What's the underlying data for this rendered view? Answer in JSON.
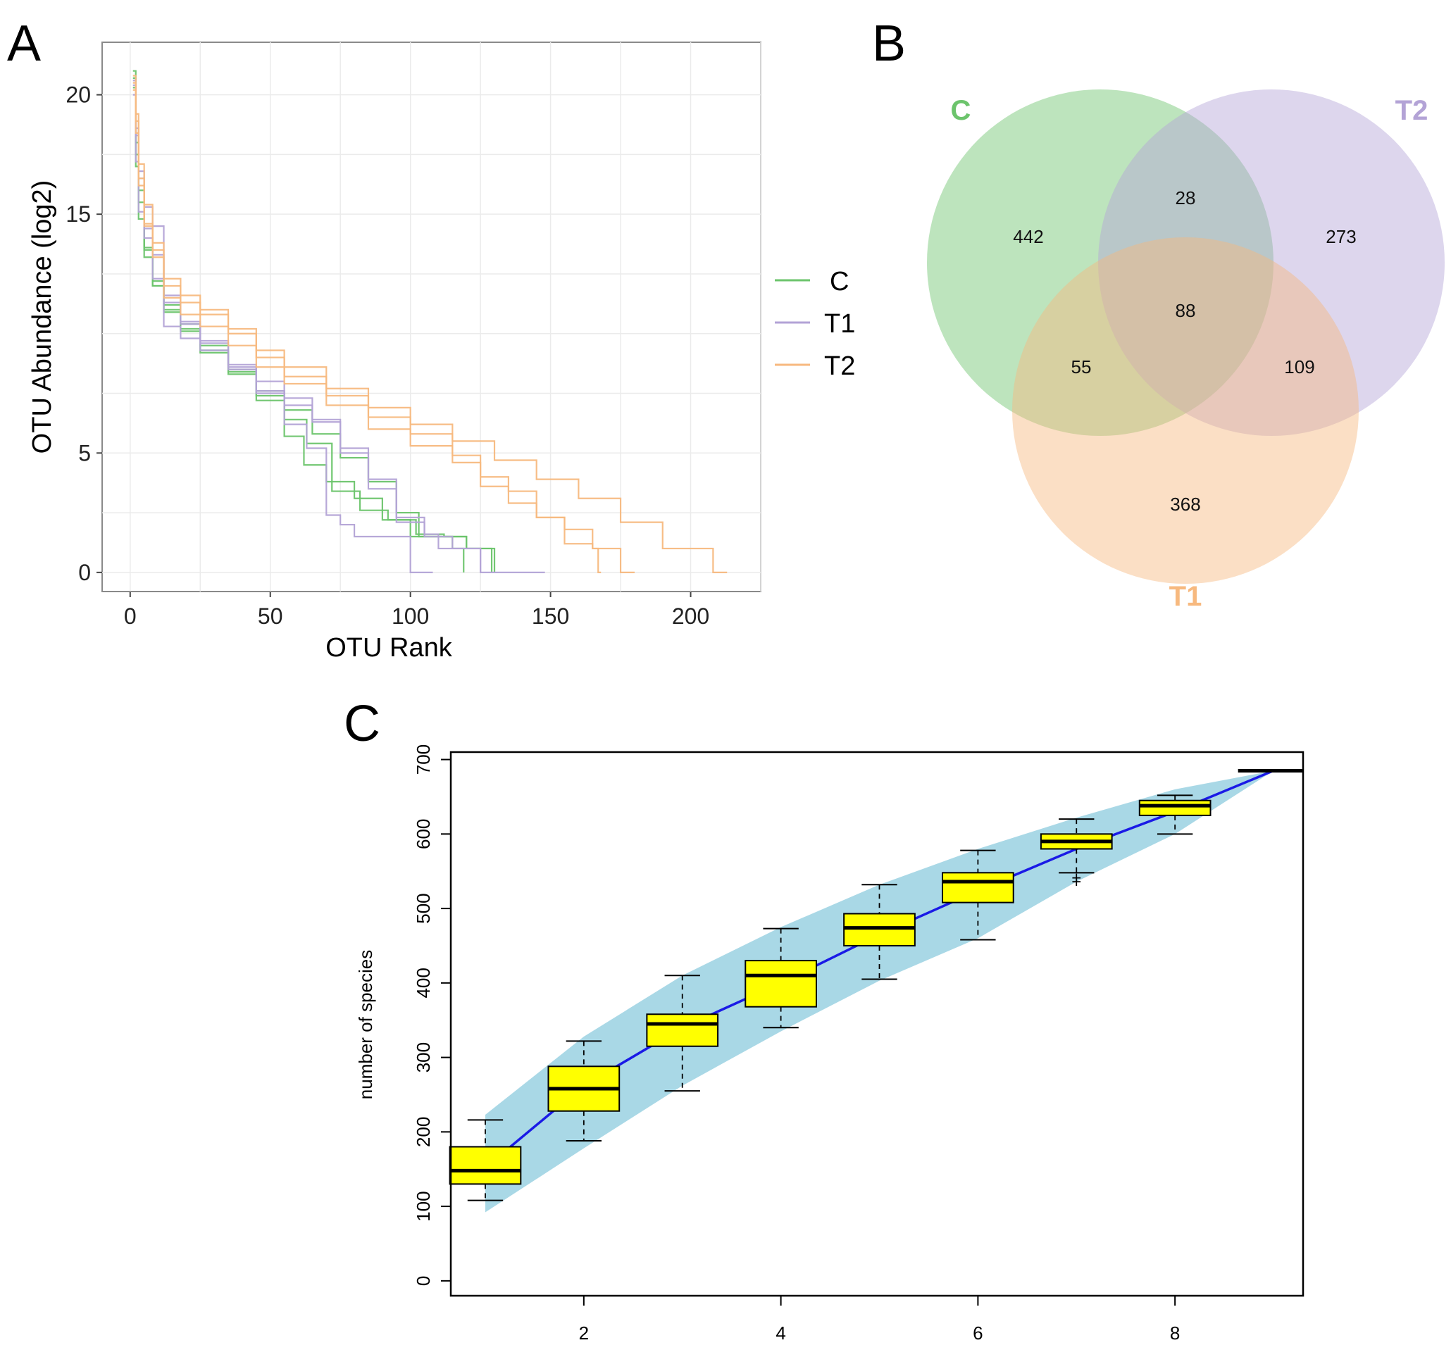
{
  "panels": {
    "a": "A",
    "b": "B",
    "c": "C"
  },
  "colors": {
    "C": "#6cc46c",
    "T1": "#b3a3d6",
    "T2": "#f7b97f",
    "box": "#ffff00",
    "band": "#a9d8e6",
    "mean_line": "#1a1ae6"
  },
  "chart_data": [
    {
      "type": "line",
      "panel": "A",
      "title": "",
      "xlabel": "OTU Rank",
      "ylabel": "OTU Abundance (log2)",
      "xlim": [
        -10,
        225
      ],
      "ylim": [
        -0.8,
        22.2
      ],
      "xticks": [
        0,
        50,
        100,
        150,
        200
      ],
      "yticks": [
        0,
        5,
        15,
        20
      ],
      "xtick_labels": [
        "0",
        "50",
        "100",
        "150",
        "200"
      ],
      "ytick_labels": [
        "0",
        "5",
        "15",
        "20"
      ],
      "grid": true,
      "legend": {
        "position": "right",
        "entries": [
          "C",
          "T1",
          "T2"
        ]
      },
      "series": [
        {
          "name": "C",
          "group": "C",
          "x": [
            1,
            2,
            3,
            5,
            8,
            12,
            18,
            25,
            35,
            45,
            55,
            62,
            70,
            80,
            90,
            100,
            110,
            115,
            118,
            119
          ],
          "y": [
            21,
            18,
            16,
            13.5,
            12.2,
            11.2,
            10.4,
            9.2,
            8.3,
            7.2,
            5.7,
            4.5,
            3.8,
            3.1,
            2.2,
            1.5,
            1.5,
            1,
            1,
            0
          ]
        },
        {
          "name": "C",
          "group": "C",
          "x": [
            1,
            2,
            3,
            5,
            8,
            12,
            18,
            25,
            35,
            45,
            55,
            63,
            72,
            82,
            92,
            102,
            112,
            120,
            126,
            128,
            129
          ],
          "y": [
            20.7,
            17.5,
            15.5,
            13.6,
            12,
            11,
            10.1,
            9.5,
            8.5,
            7.4,
            6.4,
            5.4,
            3.4,
            2.6,
            2.2,
            1.6,
            1.5,
            1,
            1,
            1,
            0
          ]
        },
        {
          "name": "C",
          "group": "C",
          "x": [
            1,
            2,
            3,
            5,
            8,
            12,
            18,
            25,
            35,
            45,
            55,
            65,
            75,
            85,
            95,
            103,
            110,
            120,
            128,
            130
          ],
          "y": [
            20.3,
            17,
            14.8,
            13.2,
            12,
            10.9,
            10.2,
            9.3,
            8.4,
            7.6,
            6.8,
            5.8,
            4.8,
            3.8,
            2.5,
            1.5,
            1.5,
            1,
            1,
            0
          ]
        },
        {
          "name": "T1",
          "group": "T1",
          "x": [
            1,
            2,
            3,
            5,
            8,
            12,
            18,
            25,
            35,
            45,
            55,
            63,
            70,
            75,
            80,
            90,
            100,
            108
          ],
          "y": [
            20.6,
            18.6,
            16.5,
            14,
            12.3,
            10.3,
            9.8,
            9.3,
            8.5,
            7.5,
            6.2,
            5.2,
            2.4,
            2,
            1.5,
            1.5,
            0,
            0
          ]
        },
        {
          "name": "T1",
          "group": "T1",
          "x": [
            1,
            2,
            3,
            5,
            8,
            12,
            18,
            25,
            35,
            45,
            55,
            65,
            75,
            85,
            95,
            105,
            110,
            120,
            123,
            125
          ],
          "y": [
            20,
            18.3,
            16.8,
            15.3,
            14.5,
            11.6,
            10.5,
            9.6,
            8.6,
            7.6,
            7,
            6.3,
            5,
            3.5,
            2.1,
            1.6,
            1,
            1,
            1,
            0
          ]
        },
        {
          "name": "T1",
          "group": "T1",
          "x": [
            1,
            2,
            3,
            5,
            8,
            12,
            18,
            25,
            35,
            45,
            55,
            65,
            75,
            85,
            95,
            105,
            115,
            125,
            135,
            145,
            148
          ],
          "y": [
            20.4,
            17.2,
            15.1,
            14.4,
            13.3,
            11.3,
            10.4,
            9.7,
            8.7,
            8,
            7.3,
            6.4,
            5.2,
            3.9,
            2.3,
            1.5,
            1,
            0,
            0,
            0,
            0
          ]
        },
        {
          "name": "T2",
          "group": "T2",
          "x": [
            1,
            2,
            3,
            5,
            8,
            12,
            18,
            25,
            35,
            45,
            55,
            70,
            85,
            100,
            115,
            125,
            135,
            145,
            155,
            165,
            170,
            175,
            180
          ],
          "y": [
            20.5,
            18.9,
            16.5,
            14.6,
            13.2,
            11.5,
            10.8,
            10.3,
            9.5,
            8.6,
            7.9,
            7,
            6,
            5.3,
            4.6,
            3.6,
            2.9,
            2.3,
            1.8,
            1,
            1,
            0,
            0
          ]
        },
        {
          "name": "T2",
          "group": "T2",
          "x": [
            1,
            2,
            3,
            5,
            8,
            12,
            18,
            25,
            35,
            45,
            55,
            70,
            85,
            100,
            115,
            125,
            135,
            145,
            155,
            165,
            167,
            168
          ],
          "y": [
            20.2,
            18.4,
            16.2,
            14.5,
            13.5,
            12,
            11.3,
            10.8,
            10,
            9,
            8.2,
            7.4,
            6.5,
            5.8,
            4.9,
            4,
            3.4,
            2.3,
            1.2,
            1,
            0,
            0
          ]
        },
        {
          "name": "T2",
          "group": "T2",
          "x": [
            1,
            2,
            3,
            5,
            8,
            12,
            18,
            25,
            35,
            45,
            55,
            70,
            85,
            100,
            115,
            130,
            145,
            160,
            175,
            190,
            205,
            208,
            210,
            213
          ],
          "y": [
            20.8,
            19.2,
            17.1,
            15.4,
            13.8,
            12.3,
            11.6,
            11,
            10.2,
            9.3,
            8.6,
            7.7,
            6.9,
            6.2,
            5.5,
            4.7,
            3.9,
            3.1,
            2.1,
            1,
            1,
            0,
            0,
            0
          ]
        }
      ]
    },
    {
      "type": "venn",
      "panel": "B",
      "sets": [
        "C",
        "T2",
        "T1"
      ],
      "regions": {
        "C_only": 442,
        "T2_only": 273,
        "T1_only": 368,
        "C_T2": 28,
        "C_T1": 55,
        "T1_T2": 109,
        "C_T1_T2": 88
      }
    },
    {
      "type": "box",
      "panel": "C",
      "title": "",
      "xlabel": "",
      "ylabel": "number of species",
      "xlim": [
        0.65,
        9.3
      ],
      "ylim": [
        -20,
        710
      ],
      "xticks": [
        2,
        4,
        6,
        8
      ],
      "yticks": [
        0,
        100,
        200,
        300,
        400,
        500,
        600,
        700
      ],
      "xtick_labels": [
        "2",
        "4",
        "6",
        "8"
      ],
      "ytick_labels": [
        "0",
        "100",
        "200",
        "300",
        "400",
        "500",
        "600",
        "700"
      ],
      "band": {
        "x": [
          1,
          2,
          3,
          4,
          5,
          6,
          7,
          8,
          9
        ],
        "upper": [
          223,
          328,
          410,
          475,
          532,
          580,
          622,
          660,
          685
        ],
        "lower": [
          92,
          178,
          262,
          335,
          403,
          460,
          536,
          600,
          685
        ]
      },
      "mean_line": {
        "x": [
          1,
          2,
          3,
          4,
          5,
          6,
          7,
          8,
          9
        ],
        "y": [
          152,
          262,
          340,
          400,
          465,
          524,
          580,
          630,
          685
        ]
      },
      "boxes": [
        {
          "x": 1,
          "min": 108,
          "q1": 130,
          "median": 148,
          "q3": 180,
          "max": 216,
          "outliers": []
        },
        {
          "x": 2,
          "min": 188,
          "q1": 228,
          "median": 258,
          "q3": 288,
          "max": 322,
          "outliers": []
        },
        {
          "x": 3,
          "min": 255,
          "q1": 315,
          "median": 345,
          "q3": 358,
          "max": 410,
          "outliers": []
        },
        {
          "x": 4,
          "min": 340,
          "q1": 368,
          "median": 410,
          "q3": 430,
          "max": 473,
          "outliers": []
        },
        {
          "x": 5,
          "min": 405,
          "q1": 450,
          "median": 474,
          "q3": 493,
          "max": 532,
          "outliers": []
        },
        {
          "x": 6,
          "min": 458,
          "q1": 508,
          "median": 536,
          "q3": 548,
          "max": 578,
          "outliers": []
        },
        {
          "x": 7,
          "min": 548,
          "q1": 580,
          "median": 590,
          "q3": 600,
          "max": 620,
          "outliers": [
            541,
            536
          ]
        },
        {
          "x": 8,
          "min": 600,
          "q1": 625,
          "median": 638,
          "q3": 645,
          "max": 652,
          "outliers": []
        },
        {
          "x": 9,
          "min": 685,
          "q1": 685,
          "median": 685,
          "q3": 685,
          "max": 685,
          "outliers": []
        }
      ]
    }
  ]
}
